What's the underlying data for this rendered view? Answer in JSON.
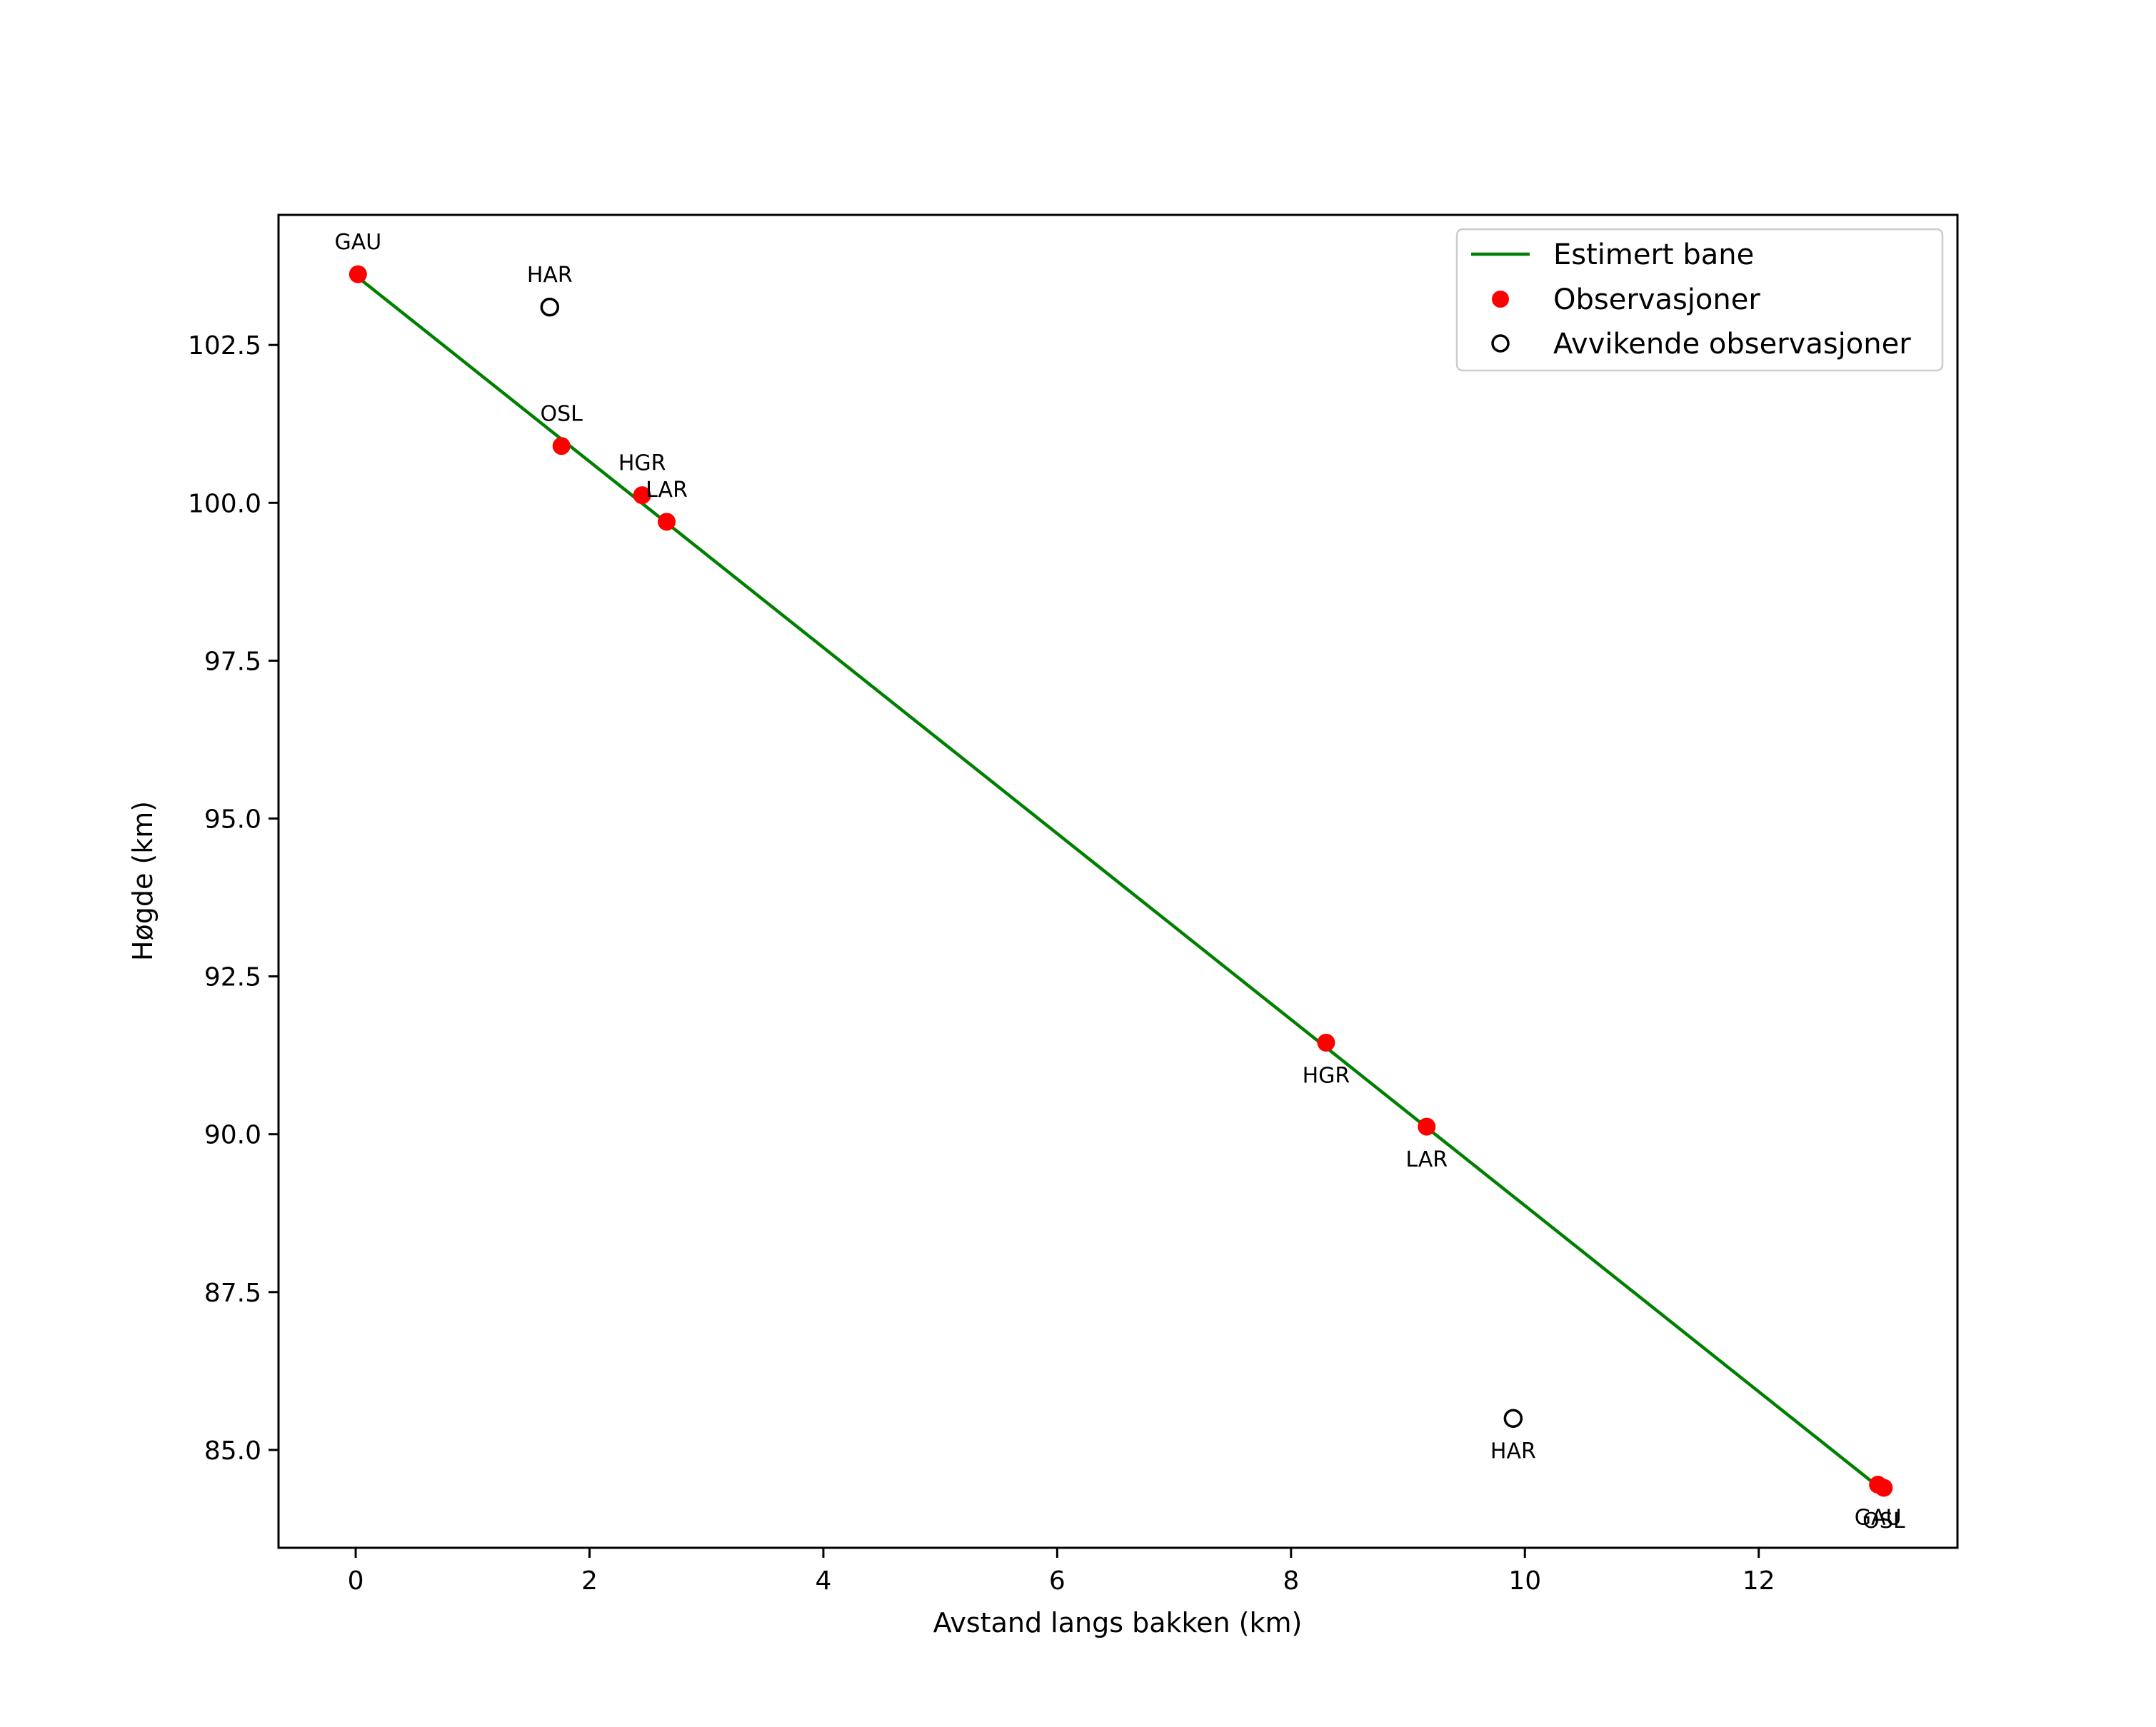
{
  "chart_data": {
    "type": "scatter",
    "title": "",
    "xlabel": "Avstand langs bakken (km)",
    "ylabel": "Høgde (km)",
    "xlim": [
      -0.66,
      13.7
    ],
    "ylim": [
      83.45,
      104.56
    ],
    "xticks": [
      0,
      2,
      4,
      6,
      8,
      10,
      12
    ],
    "xtick_labels": [
      "0",
      "2",
      "4",
      "6",
      "8",
      "10",
      "12"
    ],
    "yticks": [
      85.0,
      87.5,
      90.0,
      92.5,
      95.0,
      97.5,
      100.0,
      102.5
    ],
    "ytick_labels": [
      "85.0",
      "87.5",
      "90.0",
      "92.5",
      "95.0",
      "97.5",
      "100.0",
      "102.5"
    ],
    "legend_position": "top-right",
    "series": [
      {
        "name": "Estimert bane",
        "kind": "line",
        "color": "#008000",
        "x": [
          0.0,
          13.0
        ],
        "y": [
          103.6,
          84.45
        ]
      },
      {
        "name": "Observasjoner",
        "kind": "points",
        "color": "#ff0000",
        "points": [
          {
            "label": "GAU",
            "x": 0.02,
            "y": 103.62,
            "label_pos": "above"
          },
          {
            "label": "OSL",
            "x": 1.76,
            "y": 100.9,
            "label_pos": "above"
          },
          {
            "label": "HGR",
            "x": 2.45,
            "y": 100.12,
            "label_pos": "above"
          },
          {
            "label": "LAR",
            "x": 2.66,
            "y": 99.7,
            "label_pos": "above"
          },
          {
            "label": "HGR",
            "x": 8.3,
            "y": 91.45,
            "label_pos": "below"
          },
          {
            "label": "LAR",
            "x": 9.16,
            "y": 90.12,
            "label_pos": "below"
          },
          {
            "label": "GAU",
            "x": 13.02,
            "y": 84.45,
            "label_pos": "below"
          },
          {
            "label": "OSL",
            "x": 13.07,
            "y": 84.4,
            "label_pos": "below"
          }
        ]
      },
      {
        "name": "Avvikende observasjoner",
        "kind": "open-points",
        "color": "#000000",
        "points": [
          {
            "label": "HAR",
            "x": 1.66,
            "y": 103.1,
            "label_pos": "above"
          },
          {
            "label": "HAR",
            "x": 9.9,
            "y": 85.5,
            "label_pos": "below"
          }
        ]
      }
    ]
  }
}
